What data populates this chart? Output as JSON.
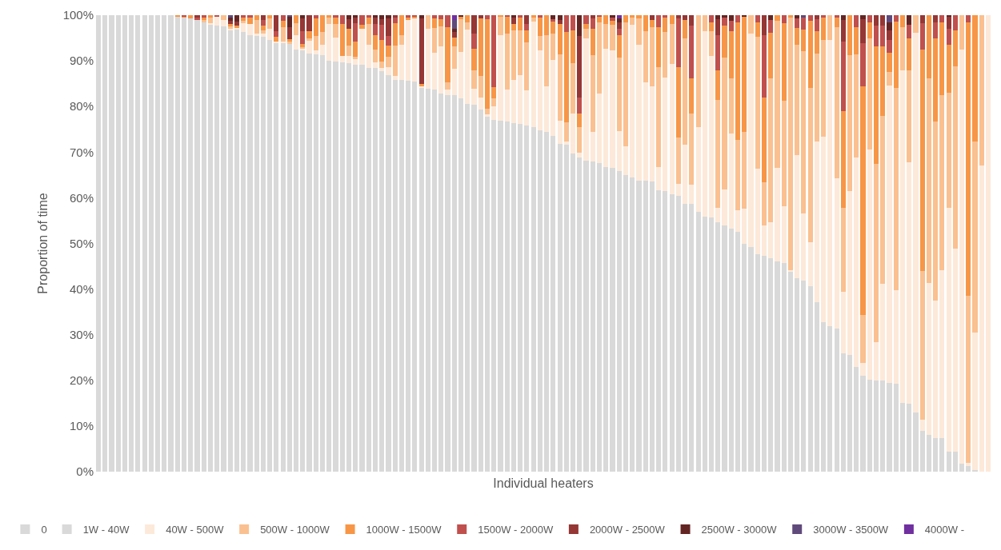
{
  "chart_data": {
    "type": "bar",
    "stacked": true,
    "xlabel": "Individual heaters",
    "ylabel": "Proportion of time",
    "categories": [
      null,
      null,
      null,
      null,
      null,
      null,
      null,
      null,
      null,
      null,
      null,
      null,
      null,
      null,
      null,
      null,
      null,
      null,
      null,
      null,
      null,
      null,
      null,
      null,
      null,
      null,
      null,
      null,
      null,
      null,
      null,
      null,
      null,
      null,
      null,
      null,
      null,
      null,
      null,
      null,
      null,
      null,
      null,
      null,
      null,
      null,
      null,
      null,
      null,
      null,
      null,
      null,
      null,
      null,
      null,
      null,
      null,
      null,
      null,
      null,
      null,
      null,
      null,
      null,
      null,
      null,
      null,
      null,
      null,
      null,
      null,
      null,
      null,
      null,
      null,
      null,
      null,
      null,
      null,
      null,
      null,
      null,
      null,
      null,
      null,
      null,
      null,
      null,
      null,
      null,
      null,
      null,
      null,
      null,
      null,
      null,
      null,
      null,
      null,
      null,
      null,
      null,
      null,
      null,
      null,
      null,
      null,
      null,
      null,
      null,
      null,
      null,
      null,
      null,
      null,
      null,
      null,
      null,
      null,
      null,
      null,
      null,
      null,
      null,
      null,
      null,
      null,
      null,
      null,
      null,
      null,
      null,
      null,
      null,
      null,
      null
    ],
    "ylim": [
      0,
      100
    ],
    "yticks": [
      {
        "value": 0,
        "label": "0%"
      },
      {
        "value": 10,
        "label": "10%"
      },
      {
        "value": 20,
        "label": "20%"
      },
      {
        "value": 30,
        "label": "30%"
      },
      {
        "value": 40,
        "label": "40%"
      },
      {
        "value": 50,
        "label": "50%"
      },
      {
        "value": 60,
        "label": "60%"
      },
      {
        "value": 70,
        "label": "70%"
      },
      {
        "value": 80,
        "label": "80%"
      },
      {
        "value": 90,
        "label": "90%"
      },
      {
        "value": 100,
        "label": "100%"
      }
    ],
    "legend": "bottom",
    "series": [
      {
        "name": "0",
        "color": "#d9d9d9",
        "values": [
          100,
          100,
          100,
          100,
          100,
          100,
          100,
          100,
          100,
          100,
          100,
          100,
          99.7,
          99.5,
          99.3,
          98.9,
          98.4,
          98.0,
          97.7,
          97.5,
          96.8,
          96.8,
          96.3,
          95.7,
          95.5,
          95.2,
          94.6,
          93.9,
          93.9,
          93.7,
          92.4,
          92.3,
          91.6,
          91.4,
          91.3,
          90.0,
          89.9,
          89.7,
          89.5,
          89.2,
          89.2,
          88.5,
          88.5,
          87.8,
          86.8,
          85.8,
          85.8,
          85.6,
          85.4,
          84.2,
          83.9,
          83.7,
          82.9,
          82.5,
          82.5,
          81.8,
          80.5,
          80.3,
          79.3,
          77.8,
          77.1,
          76.9,
          76.7,
          76.4,
          76.1,
          75.9,
          75.4,
          74.7,
          74.4,
          73.5,
          71.8,
          71.6,
          69.7,
          68.8,
          68.1,
          68.0,
          67.6,
          66.8,
          66.6,
          65.9,
          64.9,
          64.4,
          63.8,
          63.8,
          63.5,
          61.6,
          61.5,
          60.8,
          60.4,
          58.7,
          58.7,
          57.0,
          55.9,
          55.7,
          54.6,
          54.0,
          53.2,
          52.5,
          50.0,
          49.3,
          47.6,
          47.2,
          46.7,
          46.0,
          45.7,
          43.8,
          42.3,
          41.9,
          40.7,
          37.2,
          32.7,
          31.9,
          31.4,
          25.9,
          25.6,
          22.9,
          21.0,
          20.2,
          20.0,
          20.0,
          19.5,
          19.3,
          15.1,
          14.8,
          12.9,
          8.9,
          8.0,
          7.4,
          7.4,
          4.3,
          4.3,
          1.7,
          1.2,
          0.4,
          0,
          0
        ]
      },
      {
        "name": "1W - 40W",
        "color": "#d9d9d9",
        "values": [
          null,
          null,
          null,
          null,
          null,
          null,
          null,
          null,
          null,
          null,
          null,
          null,
          null,
          null,
          null,
          null,
          null,
          null,
          null,
          null,
          null,
          null,
          null,
          null,
          null,
          null,
          null,
          null,
          null,
          null,
          null,
          null,
          null,
          null,
          null,
          null,
          null,
          null,
          null,
          null,
          null,
          null,
          null,
          null,
          null,
          null,
          null,
          null,
          null,
          null,
          null,
          null,
          null,
          null,
          null,
          null,
          null,
          null,
          null,
          null,
          null,
          null,
          null,
          null,
          null,
          null,
          null,
          null,
          null,
          null,
          null,
          null,
          null,
          null,
          null,
          null,
          null,
          null,
          null,
          null,
          null,
          null,
          null,
          null,
          null,
          null,
          null,
          null,
          null,
          null,
          null,
          null,
          null,
          null,
          null,
          null,
          null,
          null,
          null,
          null,
          null,
          null,
          null,
          null,
          null,
          null,
          null,
          null,
          null,
          null,
          null,
          null,
          null,
          null,
          null,
          null,
          null,
          null,
          null,
          null,
          null,
          null,
          null,
          null,
          null,
          null,
          null,
          null,
          null,
          null,
          null,
          null,
          null,
          null,
          null,
          null
        ]
      },
      {
        "name": "40W - 500W",
        "color": "#fde9d9",
        "values": [
          0,
          0,
          0,
          0,
          0,
          0,
          0,
          0,
          0,
          0,
          0,
          0,
          0,
          0,
          0,
          0,
          0,
          0.2,
          2.0,
          1.5,
          0.3,
          0.4,
          1.95,
          2.45,
          0.4,
          0.7,
          2.4,
          0.4,
          0.4,
          0,
          3.3,
          0.4,
          2.85,
          0.9,
          2.15,
          8.0,
          5.15,
          1.35,
          1.6,
          1.25,
          7.8,
          5.05,
          1.2,
          0.6,
          1.75,
          0.85,
          7.8,
          13.3,
          13.9,
          0.25,
          13.2,
          8.05,
          10.25,
          1.2,
          5.8,
          10.1,
          16.4,
          3.6,
          2.7,
          0.4,
          3.0,
          18.7,
          7.0,
          9.4,
          10.8,
          7.65,
          23.2,
          17.65,
          10.05,
          16.7,
          5.15,
          0.65,
          8.75,
          1.05,
          26.8,
          6.35,
          15.25,
          25.85,
          25.7,
          8.75,
          6.45,
          33.55,
          29.7,
          21.45,
          20.95,
          5.05,
          24.9,
          28.6,
          2.7,
          13.0,
          4.15,
          18.4,
          40.65,
          35.35,
          3.25,
          7.85,
          20.8,
          4.7,
          7.6,
          46.6,
          18.7,
          6.7,
          8.0,
          20.6,
          12.5,
          0.3,
          27.05,
          14.65,
          9.6,
          35.2,
          40.75,
          62.7,
          32.95,
          13.5,
          35.9,
          45.95,
          2.85,
          50.3,
          8.4,
          21.2,
          65.05,
          20.4,
          72.75,
          52.95,
          83.25,
          2.5,
          33.4,
          30.1,
          36.8,
          53.5,
          44.65,
          90.75,
          0.7,
          30.1,
          67.1,
          100
        ]
      },
      {
        "name": "500W - 1000W",
        "color": "#fac090",
        "values": [
          0,
          0,
          0,
          0,
          0,
          0,
          0,
          0,
          0,
          0,
          0,
          0,
          0,
          0,
          0,
          0,
          0.55,
          1.2,
          0,
          1.0,
          0.45,
          0,
          0.55,
          0,
          3.1,
          0.8,
          2.25,
          0,
          3.15,
          0.6,
          2.6,
          0.35,
          0.4,
          3.1,
          2.8,
          1.4,
          2.95,
          0,
          2.25,
          0.45,
          0,
          4.45,
          2.8,
          1.45,
          2.35,
          6.65,
          2.0,
          0,
          0,
          0,
          2.9,
          5.5,
          4.4,
          1.55,
          4.8,
          7.25,
          1.5,
          4.05,
          4.65,
          1.3,
          1.7,
          4.05,
          12.35,
          10.8,
          9.7,
          10.45,
          0.85,
          3.1,
          11.15,
          5.85,
          14.55,
          4.35,
          11.1,
          5.55,
          2.15,
          16.85,
          15.55,
          5.5,
          5.65,
          16.15,
          27.05,
          1.6,
          5.75,
          11.3,
          12.85,
          22.05,
          9.9,
          8.75,
          10.05,
          23.15,
          15.6,
          24.6,
          3.45,
          5.5,
          23.6,
          28.8,
          12.15,
          15.55,
          16.9,
          4.1,
          28.9,
          9.45,
          31.55,
          32.2,
          23.1,
          55.45,
          24.1,
          35.5,
          33.8,
          19.25,
          21.15,
          5.4,
          33.1,
          18.4,
          29.7,
          22.5,
          10.5,
          24.35,
          39.1,
          36.8,
          3.1,
          44.45,
          9.6,
          20.1,
          3.85,
          32.6,
          44.85,
          39.25,
          38.35,
          25.2,
          39.85,
          7.55,
          36.6,
          41.8,
          32.9,
          0
        ]
      },
      {
        "name": "1000W - 1500W",
        "color": "#f79646",
        "values": [
          0,
          0,
          0,
          0,
          0,
          0,
          0,
          0,
          0,
          0,
          0,
          0,
          0.3,
          0.3,
          0.7,
          0,
          0.45,
          0.6,
          0,
          0,
          0.45,
          0.5,
          0.75,
          1.25,
          1.0,
          1.0,
          0.75,
          0.9,
          1.35,
          0.45,
          1.7,
          0.7,
          1.7,
          3.85,
          3.75,
          0.6,
          1.45,
          7.1,
          3.65,
          3.4,
          0.85,
          1.4,
          3.2,
          4.7,
          2.45,
          5.0,
          4.4,
          0.6,
          0.35,
          0.45,
          0,
          2.0,
          1.6,
          12.05,
          2.05,
          0.5,
          1.6,
          4.7,
          12.6,
          19.65,
          2.45,
          0.35,
          3.6,
          1.55,
          2.85,
          2.6,
          0.55,
          4.0,
          4.4,
          2.55,
          6.5,
          19.65,
          7.05,
          3.05,
          1.1,
          5.9,
          1.25,
          1.85,
          0.85,
          4.8,
          1.6,
          0.45,
          0.75,
          3.45,
          1.7,
          8.75,
          3.15,
          1.85,
          15.45,
          4.15,
          7.7,
          0,
          0,
          1.85,
          6.4,
          7.1,
          10.4,
          25.65,
          25.2,
          0,
          3.2,
          18.65,
          9.9,
          1.2,
          17.0,
          0.45,
          3.8,
          4.85,
          14.7,
          4.8,
          4.85,
          0,
          2.1,
          21.1,
          8.8,
          6.1,
          50.1,
          3.55,
          25.7,
          15.2,
          4.05,
          14.45,
          2.55,
          7.0,
          0,
          48.45,
          13.75,
          18.25,
          15.9,
          10.5,
          7.9,
          0,
          59.95,
          27.7,
          0,
          0
        ]
      },
      {
        "name": "1500W - 2000W",
        "color": "#c0504d",
        "values": [
          0,
          0,
          0,
          0,
          0,
          0,
          0,
          0,
          0,
          0,
          0,
          0,
          0,
          0.2,
          0,
          0.6,
          0.6,
          0,
          0.3,
          0,
          0,
          0,
          0.45,
          0.6,
          0,
          1.3,
          0,
          1.35,
          1.2,
          0,
          0,
          2.7,
          0,
          0.75,
          0,
          0,
          0.55,
          1.85,
          0,
          4.0,
          2.15,
          0.6,
          2.45,
          3.4,
          2.1,
          1.1,
          0,
          0.5,
          0.35,
          0,
          0,
          0.75,
          0.85,
          2.7,
          0,
          0,
          0,
          3.4,
          0,
          0.85,
          15.75,
          0,
          0.35,
          0,
          0.55,
          1.55,
          0,
          0.55,
          0,
          0.55,
          0,
          3.75,
          3.4,
          3.55,
          1.85,
          2.15,
          0.35,
          0,
          0.75,
          1.4,
          0,
          0,
          0,
          0,
          0,
          2.55,
          0.55,
          0,
          10.65,
          0,
          11.6,
          0,
          0,
          1.6,
          7.75,
          1.7,
          2.15,
          1.6,
          0,
          0,
          1.6,
          13.6,
          2.85,
          0,
          1.7,
          0,
          2.0,
          2.55,
          1.2,
          2.7,
          0.55,
          0,
          0.45,
          15.4,
          0,
          2.55,
          9.45,
          1.6,
          4.5,
          4.5,
          2.85,
          1.4,
          0,
          3.0,
          0,
          5.85,
          0,
          3.45,
          1.55,
          3.6,
          3.3,
          0,
          1.55,
          0,
          0,
          0
        ]
      },
      {
        "name": "2000W - 2500W",
        "color": "#953735",
        "values": [
          0,
          0,
          0,
          0,
          0,
          0,
          0,
          0,
          0,
          0,
          0,
          0,
          0,
          0,
          0,
          0.5,
          0,
          0,
          0,
          0,
          0.7,
          0.9,
          0,
          0,
          0,
          1.0,
          0,
          3.45,
          0,
          2.7,
          0,
          2.8,
          3.45,
          0,
          0,
          0,
          0,
          0,
          2.15,
          1.25,
          0,
          0,
          1.4,
          1.2,
          3.85,
          0.6,
          0,
          0,
          0,
          14.4,
          0,
          0,
          0,
          0,
          1.25,
          0,
          0,
          3.95,
          0.75,
          0,
          0,
          0,
          0,
          1.3,
          0,
          1.85,
          0,
          0,
          0,
          0,
          1.0,
          0,
          0,
          13.4,
          0,
          0.75,
          0,
          0,
          0,
          1.4,
          0,
          0,
          0,
          0,
          1.0,
          0,
          0,
          0,
          0.75,
          1.0,
          2.25,
          0,
          0,
          0,
          3.55,
          0,
          0,
          0,
          0,
          0,
          0,
          4.4,
          0,
          0,
          0,
          0,
          0,
          0,
          0,
          0.85,
          0,
          0,
          0,
          4.7,
          0,
          0,
          5.25,
          0,
          2.3,
          2.3,
          2.15,
          0,
          0,
          0,
          0,
          1.7,
          0,
          1.55,
          0,
          2.55,
          0,
          0,
          0,
          0,
          0,
          0
        ]
      },
      {
        "name": "2500W - 3000W",
        "color": "#632523",
        "values": [
          0,
          0,
          0,
          0,
          0,
          0,
          0,
          0,
          0,
          0,
          0,
          0,
          0,
          0,
          0,
          0,
          0,
          0,
          0,
          0,
          0.85,
          1.4,
          0,
          0,
          0,
          0,
          0,
          0,
          0,
          2.2,
          0,
          0.75,
          0,
          0,
          0,
          0,
          0,
          0,
          0.85,
          0.45,
          0,
          0,
          0.45,
          0.85,
          0.7,
          0,
          0,
          0,
          0,
          0.7,
          0,
          0,
          0,
          0,
          0.7,
          0.35,
          0,
          0,
          0,
          0,
          0,
          0,
          0,
          0.55,
          0,
          0,
          0,
          0,
          0,
          0.85,
          1.0,
          0,
          0,
          4.6,
          0,
          0,
          0,
          0,
          0.45,
          0.85,
          0,
          0,
          0,
          0,
          0,
          0,
          0,
          0,
          0,
          0,
          0,
          0,
          0,
          0,
          0.85,
          0.55,
          1.3,
          0,
          0.3,
          0,
          0,
          0,
          1.0,
          0,
          0,
          0,
          0.75,
          0,
          0,
          0,
          0,
          0,
          0,
          1.0,
          0,
          0,
          0.85,
          0,
          0,
          0,
          1.7,
          0,
          0,
          2.15,
          0,
          0,
          0,
          0,
          0,
          0.35,
          0,
          0,
          0,
          0,
          0,
          0
        ]
      },
      {
        "name": "3000W - 3500W",
        "color": "#604a7b",
        "values": [
          0,
          0,
          0,
          0,
          0,
          0,
          0,
          0,
          0,
          0,
          0,
          0,
          0,
          0,
          0,
          0,
          0,
          0,
          0,
          0,
          0.45,
          0,
          0,
          0,
          0,
          0,
          0,
          0,
          0,
          0.35,
          0,
          0,
          0,
          0,
          0,
          0,
          0,
          0,
          0,
          0,
          0,
          0,
          0,
          0,
          0,
          0,
          0,
          0,
          0,
          0,
          0,
          0,
          0,
          0,
          1.9,
          0,
          0,
          0,
          0,
          0,
          0,
          0,
          0,
          0,
          0,
          0,
          0,
          0,
          0,
          0,
          0,
          0,
          0,
          0,
          0,
          0,
          0,
          0,
          0,
          0,
          0,
          0,
          0,
          0,
          0,
          0,
          0,
          0,
          0,
          0,
          0,
          0,
          0,
          0,
          0,
          0,
          0,
          0,
          0,
          0,
          0,
          0,
          0,
          0,
          0,
          0,
          0,
          0.55,
          0,
          0,
          0,
          0,
          0,
          0,
          0,
          0,
          0,
          0,
          0,
          0,
          1.6,
          0,
          0,
          0,
          0,
          0,
          0,
          0,
          0,
          0,
          0,
          0,
          0,
          0,
          0,
          0
        ]
      },
      {
        "name": "4000W -",
        "color": "#7030a0",
        "values": [
          0,
          0,
          0,
          0,
          0,
          0,
          0,
          0,
          0,
          0,
          0,
          0,
          0,
          0,
          0,
          0,
          0,
          0,
          0,
          0,
          0,
          0,
          0,
          0,
          0,
          0,
          0,
          0,
          0,
          0,
          0,
          0,
          0,
          0,
          0,
          0,
          0,
          0,
          0,
          0,
          0,
          0,
          0,
          0,
          0,
          0,
          0,
          0,
          0,
          0,
          0,
          0,
          0,
          0,
          1.0,
          0,
          0,
          0,
          0,
          0,
          0,
          0,
          0,
          0,
          0,
          0,
          0,
          0,
          0,
          0,
          0,
          0,
          0,
          0,
          0,
          0,
          0,
          0,
          0,
          0.75,
          0,
          0,
          0,
          0,
          0,
          0,
          0,
          0,
          0,
          0,
          0,
          0,
          0,
          0,
          0,
          0,
          0,
          0,
          0,
          0,
          0,
          0,
          0,
          0,
          0,
          0,
          0,
          0,
          0,
          0,
          0,
          0,
          0,
          0,
          0,
          0,
          0,
          0,
          0,
          0,
          0,
          0,
          0,
          0,
          0,
          0,
          0,
          0,
          0,
          0,
          0,
          0,
          0,
          0,
          0,
          0
        ]
      }
    ]
  }
}
